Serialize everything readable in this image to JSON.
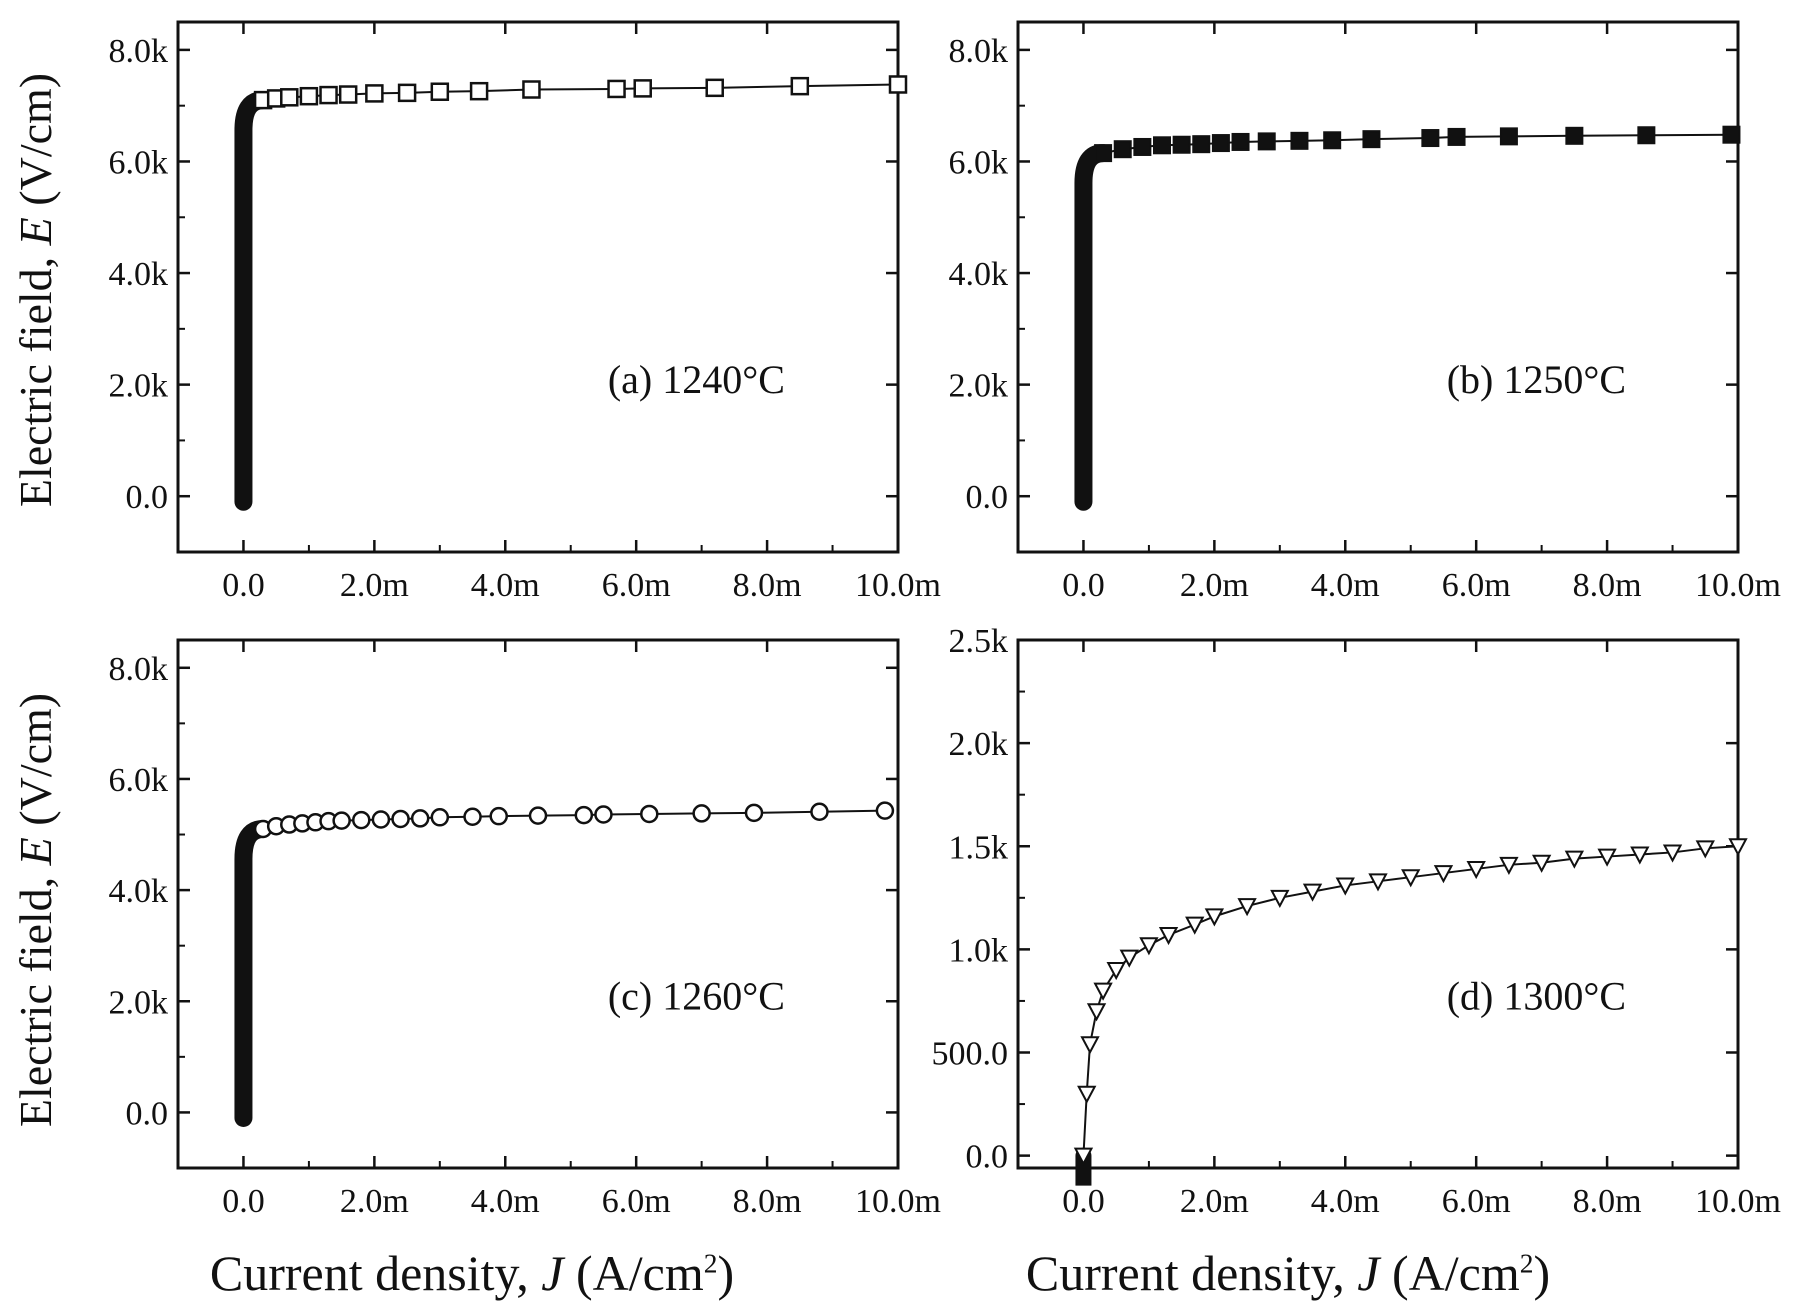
{
  "figure": {
    "ylabel": {
      "prefix": "Electric field, ",
      "symbol": "E",
      "unit": " (V/cm)"
    },
    "xlabel": {
      "prefix": "Current density, ",
      "symbol": "J",
      "unit": " (A/cm",
      "sup": "2",
      "close": ")"
    }
  },
  "chart_data": [
    {
      "type": "line",
      "panel": "a",
      "annotation": "(a) 1240°C",
      "marker": "open-square",
      "xlim": [
        -0.001,
        0.01
      ],
      "ylim": [
        -1000,
        8500
      ],
      "xticks": [
        0,
        0.002,
        0.004,
        0.006,
        0.008,
        0.01
      ],
      "xtick_labels": [
        "0.0",
        "2.0m",
        "4.0m",
        "6.0m",
        "8.0m",
        "10.0m"
      ],
      "yticks": [
        0,
        2000,
        4000,
        6000,
        8000
      ],
      "ytick_labels": [
        "0.0",
        "2.0k",
        "4.0k",
        "6.0k",
        "8.0k"
      ],
      "x": [
        0.0003,
        0.0005,
        0.0007,
        0.001,
        0.0013,
        0.0016,
        0.002,
        0.0025,
        0.003,
        0.0036,
        0.0044,
        0.0057,
        0.0061,
        0.0072,
        0.0085,
        0.01
      ],
      "y": [
        7100,
        7130,
        7150,
        7170,
        7190,
        7200,
        7220,
        7230,
        7250,
        7260,
        7290,
        7300,
        7310,
        7320,
        7350,
        7380
      ]
    },
    {
      "type": "line",
      "panel": "b",
      "annotation": "(b) 1250°C",
      "marker": "filled-square",
      "xlim": [
        -0.001,
        0.01
      ],
      "ylim": [
        -1000,
        8500
      ],
      "xticks": [
        0,
        0.002,
        0.004,
        0.006,
        0.008,
        0.01
      ],
      "xtick_labels": [
        "0.0",
        "2.0m",
        "4.0m",
        "6.0m",
        "8.0m",
        "10.0m"
      ],
      "yticks": [
        0,
        2000,
        4000,
        6000,
        8000
      ],
      "ytick_labels": [
        "0.0",
        "2.0k",
        "4.0k",
        "6.0k",
        "8.0k"
      ],
      "x": [
        0.0003,
        0.0006,
        0.0009,
        0.0012,
        0.0015,
        0.0018,
        0.0021,
        0.0024,
        0.0028,
        0.0033,
        0.0038,
        0.0044,
        0.0053,
        0.0057,
        0.0065,
        0.0075,
        0.0086,
        0.0099
      ],
      "y": [
        6150,
        6220,
        6260,
        6290,
        6300,
        6310,
        6330,
        6350,
        6360,
        6370,
        6380,
        6400,
        6420,
        6440,
        6450,
        6460,
        6470,
        6480
      ]
    },
    {
      "type": "line",
      "panel": "c",
      "annotation": "(c) 1260°C",
      "marker": "open-circle",
      "xlim": [
        -0.001,
        0.01
      ],
      "ylim": [
        -1000,
        8500
      ],
      "xticks": [
        0,
        0.002,
        0.004,
        0.006,
        0.008,
        0.01
      ],
      "xtick_labels": [
        "0.0",
        "2.0m",
        "4.0m",
        "6.0m",
        "8.0m",
        "10.0m"
      ],
      "yticks": [
        0,
        2000,
        4000,
        6000,
        8000
      ],
      "ytick_labels": [
        "0.0",
        "2.0k",
        "4.0k",
        "6.0k",
        "8.0k"
      ],
      "x": [
        0.0003,
        0.0005,
        0.0007,
        0.0009,
        0.0011,
        0.0013,
        0.0015,
        0.0018,
        0.0021,
        0.0024,
        0.0027,
        0.003,
        0.0035,
        0.0039,
        0.0045,
        0.0052,
        0.0055,
        0.0062,
        0.007,
        0.0078,
        0.0088,
        0.0098
      ],
      "y": [
        5100,
        5150,
        5180,
        5200,
        5220,
        5240,
        5250,
        5260,
        5270,
        5280,
        5290,
        5310,
        5320,
        5330,
        5340,
        5350,
        5360,
        5370,
        5380,
        5390,
        5410,
        5430
      ]
    },
    {
      "type": "line",
      "panel": "d",
      "annotation": "(d) 1300°C",
      "marker": "open-triangle-down",
      "xlim": [
        -0.001,
        0.01
      ],
      "ylim": [
        -60,
        2500
      ],
      "xticks": [
        0,
        0.002,
        0.004,
        0.006,
        0.008,
        0.01
      ],
      "xtick_labels": [
        "0.0",
        "2.0m",
        "4.0m",
        "6.0m",
        "8.0m",
        "10.0m"
      ],
      "yticks": [
        0,
        500,
        1000,
        1500,
        2000,
        2500
      ],
      "ytick_labels": [
        "0.0",
        "500.0",
        "1.0k",
        "1.5k",
        "2.0k",
        "2.5k"
      ],
      "x": [
        0,
        5e-05,
        0.0001,
        0.0002,
        0.0003,
        0.0005,
        0.0007,
        0.001,
        0.0013,
        0.0017,
        0.002,
        0.0025,
        0.003,
        0.0035,
        0.004,
        0.0045,
        0.005,
        0.0055,
        0.006,
        0.0065,
        0.007,
        0.0075,
        0.008,
        0.0085,
        0.009,
        0.0095,
        0.01
      ],
      "y": [
        0,
        300,
        540,
        700,
        800,
        900,
        960,
        1020,
        1070,
        1120,
        1160,
        1210,
        1250,
        1280,
        1310,
        1330,
        1350,
        1370,
        1390,
        1410,
        1420,
        1440,
        1450,
        1460,
        1470,
        1490,
        1500
      ]
    }
  ]
}
